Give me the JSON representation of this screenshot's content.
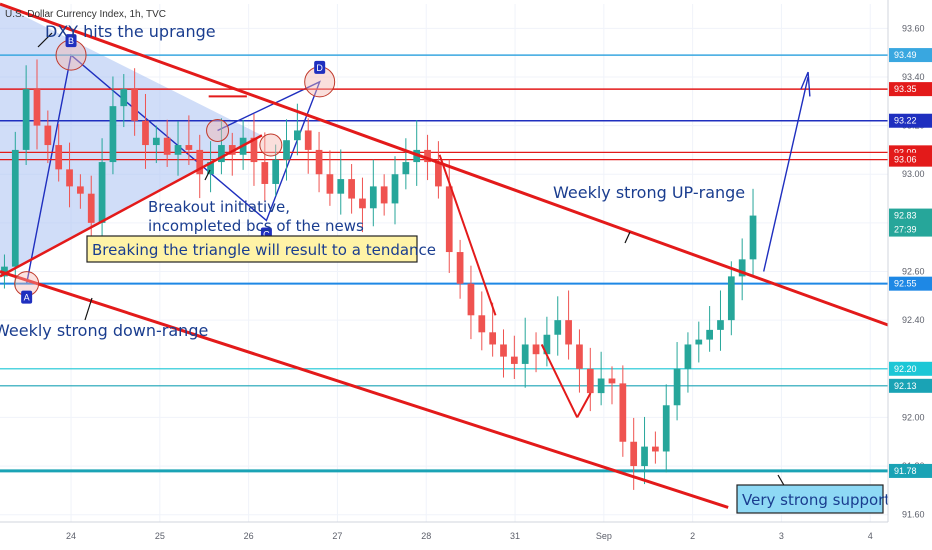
{
  "header": {
    "symbol_text": "U.S. Dollar Currency Index, 1h, TVC"
  },
  "colors": {
    "up": "#26a69a",
    "down": "#ef5350",
    "trend_red": "#e31a1a",
    "blue_line": "#1f2fbf",
    "light_blue": "#39a7e0",
    "cyan": "#1cc7d6",
    "triangle_fill": "#a9c1f2",
    "note_box": "#fff3a6",
    "support_box": "#8ed9f5"
  },
  "annotations": {
    "top": "DXY hits the uprange",
    "breakout_1": "Breakout initiative,",
    "breakout_2": "incompleted bcs of the news",
    "box": "Breaking the triangle will result to a tendance",
    "up_range": "Weekly strong UP-range",
    "down_range": "Weekly strong down-range",
    "support": "Very strong support"
  },
  "pattern_points": [
    {
      "label": "A",
      "x": 0.3,
      "y": 92.55
    },
    {
      "label": "B",
      "x": 0.8,
      "y": 93.49
    },
    {
      "label": "C",
      "x": 3.0,
      "y": 92.81
    },
    {
      "label": "D",
      "x": 3.6,
      "y": 93.38
    }
  ],
  "levels": [
    {
      "value": 93.49,
      "label": "93.49",
      "color": "#39a7e0",
      "width": 1.5
    },
    {
      "value": 93.35,
      "label": "93.35",
      "color": "#e31a1a",
      "width": 1.5
    },
    {
      "value": 93.22,
      "label": "93.22",
      "color": "#1f2fbf",
      "width": 1.5
    },
    {
      "value": 93.09,
      "label": "93.09",
      "color": "#e31a1a",
      "width": 1.2
    },
    {
      "value": 93.06,
      "label": "93.06",
      "color": "#e31a1a",
      "width": 1.2
    },
    {
      "value": 92.55,
      "label": "92.55",
      "color": "#1e88e5",
      "width": 2
    },
    {
      "value": 92.2,
      "label": "92.20",
      "color": "#1cc7d6",
      "width": 1.2
    },
    {
      "value": 92.13,
      "label": "92.13",
      "color": "#1aa3b5",
      "width": 1.2
    },
    {
      "value": 91.78,
      "label": "91.78",
      "color": "#1aa3b5",
      "width": 3
    }
  ],
  "current_price": {
    "value": 92.83,
    "label": "92.83",
    "countdown": "27:39"
  },
  "chart_data": {
    "type": "candlestick",
    "title": "U.S. Dollar Currency Index, 1h, TVC",
    "x_tick_labels": [
      "24",
      "25",
      "26",
      "27",
      "28",
      "31",
      "Sep",
      "2",
      "3",
      "4"
    ],
    "y_tick_labels": [
      "93.60",
      "93.40",
      "93.20",
      "93.00",
      "92.80",
      "92.60",
      "92.40",
      "92.20",
      "92.00",
      "91.80",
      "91.60"
    ],
    "y_ticks": [
      93.6,
      93.4,
      93.2,
      93.0,
      92.8,
      92.6,
      92.4,
      92.2,
      92.0,
      91.8,
      91.6
    ],
    "ylim": [
      91.57,
      93.7
    ],
    "xlim": [
      0,
      10
    ],
    "candles_close": [
      92.62,
      93.1,
      93.35,
      93.2,
      93.12,
      93.02,
      92.95,
      92.92,
      92.8,
      93.05,
      93.28,
      93.35,
      93.22,
      93.12,
      93.15,
      93.08,
      93.12,
      93.1,
      93.0,
      93.05,
      93.12,
      93.08,
      93.15,
      93.05,
      92.96,
      93.06,
      93.14,
      93.18,
      93.1,
      93.0,
      92.92,
      92.98,
      92.9,
      92.86,
      92.95,
      92.88,
      93.0,
      93.05,
      93.1,
      93.05,
      92.95,
      92.68,
      92.55,
      92.42,
      92.35,
      92.3,
      92.25,
      92.22,
      92.3,
      92.26,
      92.34,
      92.4,
      92.3,
      92.2,
      92.1,
      92.16,
      92.14,
      91.9,
      91.8,
      91.88,
      91.86,
      92.05,
      92.2,
      92.3,
      92.32,
      92.36,
      92.4,
      92.58,
      92.65,
      92.83
    ],
    "series": [
      {
        "name": "",
        "type": "line",
        "x": [
          0.0,
          10.0
        ],
        "y": [
          93.7,
          92.38
        ]
      },
      {
        "name": "",
        "type": "line",
        "x": [
          0.0,
          8.2
        ],
        "y": [
          92.6,
          91.63
        ]
      },
      {
        "name": "",
        "type": "line",
        "x": [
          0.0,
          2.95
        ],
        "y": [
          92.58,
          93.16
        ]
      }
    ]
  }
}
